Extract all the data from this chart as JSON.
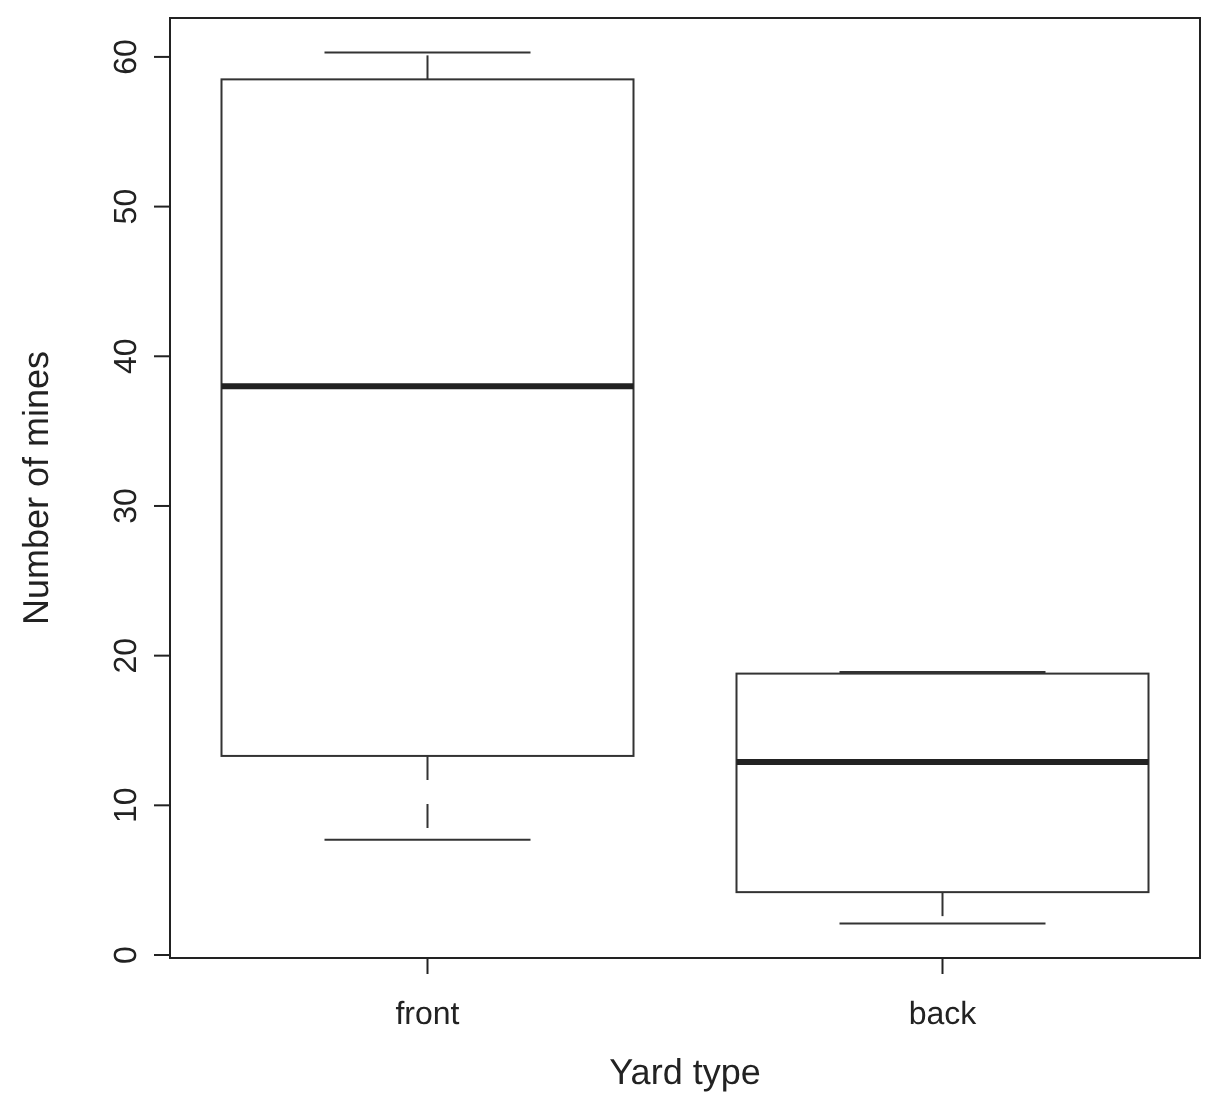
{
  "chart_data": {
    "type": "box",
    "xlabel": "Yard type",
    "ylabel": "Number of mines",
    "categories": [
      "front",
      "back"
    ],
    "boxes": [
      {
        "low": 7.7,
        "q1": 13.3,
        "median": 38.0,
        "q3": 58.5,
        "high": 60.3
      },
      {
        "low": 2.1,
        "q1": 4.2,
        "median": 12.9,
        "q3": 18.8,
        "high": 18.9
      }
    ],
    "ylim": [
      -0.2,
      62.6
    ],
    "yticks": [
      0,
      10,
      20,
      30,
      40,
      50,
      60
    ],
    "grid": false
  }
}
